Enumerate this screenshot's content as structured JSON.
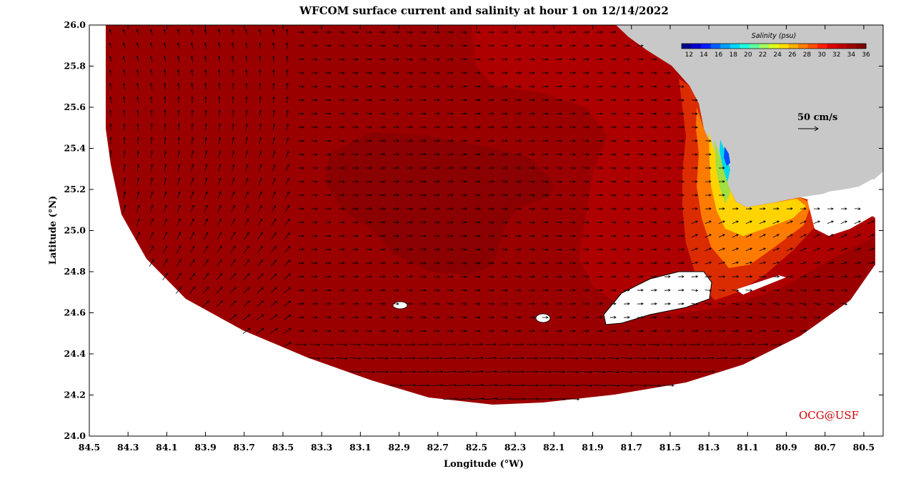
{
  "map": {
    "title": "WFCOM surface current and salinity at hour 1 on 12/14/2022",
    "xlabel": "Longitude (°W)",
    "ylabel": "Latitude (°N)",
    "credit": "OCG@USF",
    "lon_range": [
      84.5,
      80.4
    ],
    "lat_range": [
      24.0,
      26.0
    ],
    "lon_ticks": [
      "84.5",
      "84.3",
      "84.1",
      "83.9",
      "83.7",
      "83.5",
      "83.3",
      "83.1",
      "82.9",
      "82.7",
      "82.5",
      "82.3",
      "82.1",
      "81.9",
      "81.7",
      "81.5",
      "81.3",
      "81.1",
      "80.9",
      "80.7",
      "80.5"
    ],
    "lat_ticks": [
      "24.0",
      "24.2",
      "24.4",
      "24.6",
      "24.8",
      "25.0",
      "25.2",
      "25.4",
      "25.6",
      "25.8",
      "26.0"
    ],
    "land_color": "#c8c8c8",
    "ocean_color": "#9b0000"
  },
  "colorbar": {
    "title": "Salinity (psu)",
    "ticks": [
      "12",
      "14",
      "16",
      "18",
      "20",
      "22",
      "24",
      "26",
      "28",
      "30",
      "32",
      "34",
      "36"
    ],
    "range": [
      11,
      36
    ]
  },
  "scale": {
    "label": "50 cm/s"
  }
}
